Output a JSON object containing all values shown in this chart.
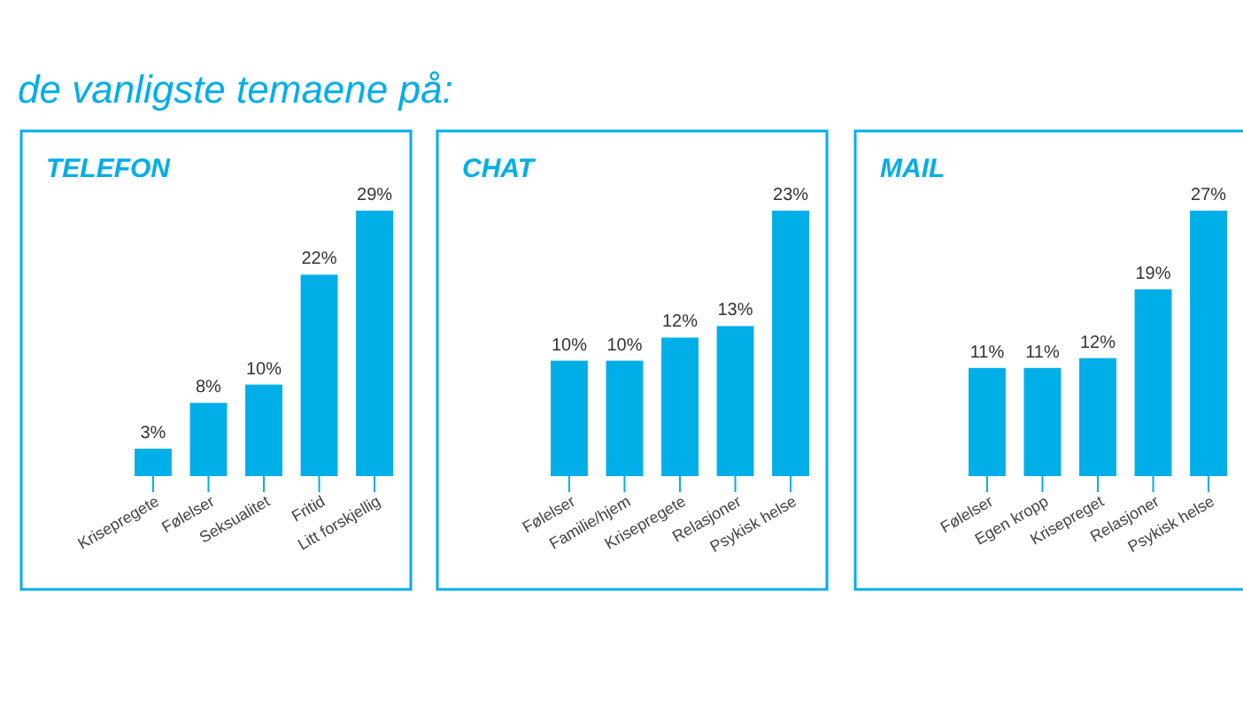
{
  "chart_data": [
    {
      "type": "other",
      "title": "de vanligste temaene på:"
    },
    {
      "type": "bar",
      "title": "TELEFON",
      "categories": [
        "Krisepregete",
        "Følelser",
        "Seksualitet",
        "Fritid",
        "Litt forskjellig"
      ],
      "values": [
        3,
        8,
        10,
        22,
        29
      ],
      "value_labels": [
        "3%",
        "8%",
        "10%",
        "22%",
        "29%"
      ],
      "color": "#00aee8"
    },
    {
      "type": "bar",
      "title": "CHAT",
      "categories": [
        "Følelser",
        "Familie/hjem",
        "Krisepregete",
        "Relasjoner",
        "Psykisk helse"
      ],
      "values": [
        10,
        10,
        12,
        13,
        23
      ],
      "value_labels": [
        "10%",
        "10%",
        "12%",
        "13%",
        "23%"
      ],
      "color": "#00aee8"
    },
    {
      "type": "bar",
      "title": "MAIL",
      "categories": [
        "Følelser",
        "Egen kropp",
        "Krisepreget",
        "Relasjoner",
        "Psykisk helse"
      ],
      "values": [
        11,
        11,
        12,
        19,
        27
      ],
      "value_labels": [
        "11%",
        "11%",
        "12%",
        "19%",
        "27%"
      ],
      "color": "#00aee8"
    }
  ]
}
